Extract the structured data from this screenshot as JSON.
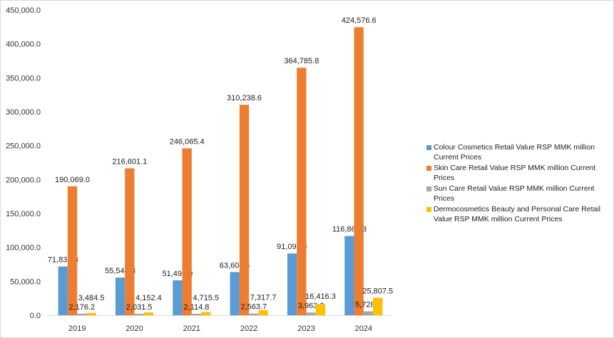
{
  "chart_data": {
    "type": "bar",
    "categories": [
      "2019",
      "2020",
      "2021",
      "2022",
      "2023",
      "2024"
    ],
    "series": [
      {
        "name": "Colour Cosmetics Retail Value RSP MMK million Current Prices",
        "color": "#5b9bd5",
        "values": [
          71835.8,
          55540.8,
          51496.9,
          63608.4,
          91095.4,
          116869.3
        ],
        "labels": [
          "71,835.8",
          "55,540.8",
          "51,496.9",
          "63,608.4",
          "91,095.4",
          "116,869.3"
        ]
      },
      {
        "name": "Skin Care Retail Value RSP MMK million Current Prices",
        "color": "#ed7d31",
        "values": [
          190069.0,
          216601.1,
          246065.4,
          310238.6,
          364785.8,
          424576.6
        ],
        "labels": [
          "190,069.0",
          "216,601.1",
          "246,065.4",
          "310,238.6",
          "364,785.8",
          "424,576.6"
        ]
      },
      {
        "name": "Sun Care Retail Value RSP MMK million Current Prices",
        "color": "#a5a5a5",
        "values": [
          2176.2,
          2031.5,
          2114.8,
          2563.7,
          3963.3,
          5728.6
        ],
        "labels": [
          "2,176.2",
          "2,031.5",
          "2,114.8",
          "2,563.7",
          "3,963.3",
          "5,728.6"
        ]
      },
      {
        "name": "Dermocosmetics Beauty and Personal Care Retail Value RSP MMK million Current Prices",
        "color": "#ffc000",
        "values": [
          3484.5,
          4152.4,
          4715.5,
          7317.7,
          16416.3,
          25807.5
        ],
        "labels": [
          "3,484.5",
          "4,152.4",
          "4,715.5",
          "7,317.7",
          "16,416.3",
          "25,807.5"
        ]
      }
    ],
    "yticks": [
      "0.0",
      "50,000.0",
      "100,000.0",
      "150,000.0",
      "200,000.0",
      "250,000.0",
      "300,000.0",
      "350,000.0",
      "400,000.0",
      "450,000.0"
    ],
    "ylim": [
      0,
      450000
    ],
    "grid": false,
    "legend": "right"
  }
}
